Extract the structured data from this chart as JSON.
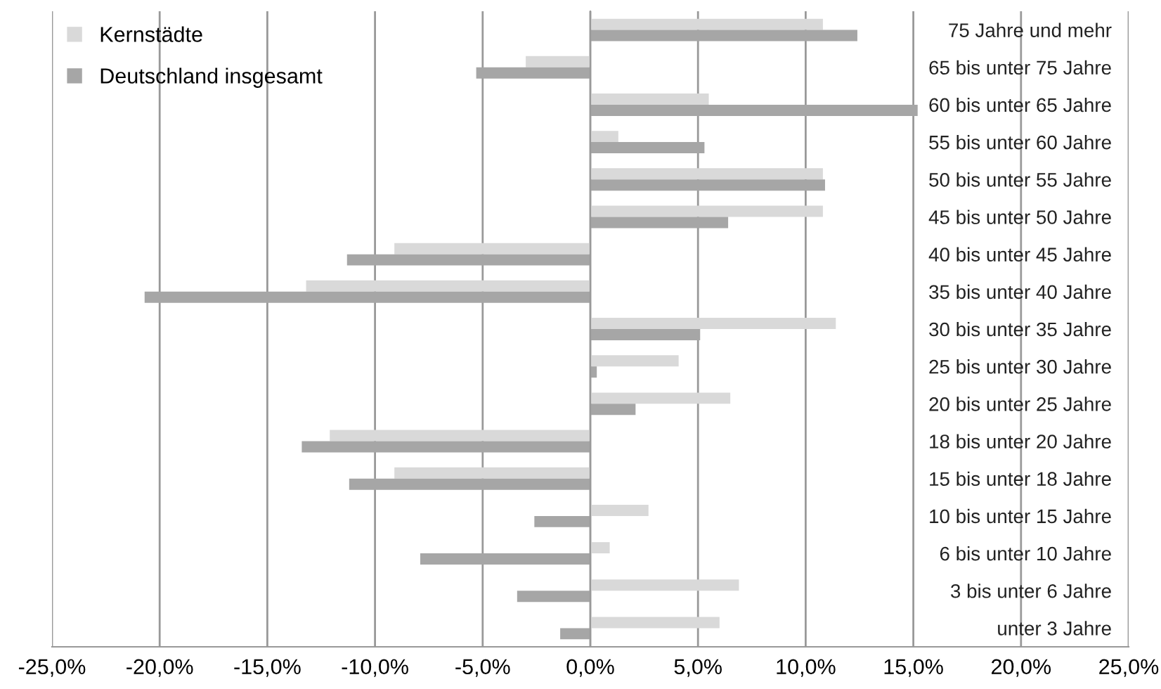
{
  "chart_data": {
    "type": "bar",
    "orientation": "horizontal",
    "categories": [
      "75 Jahre und mehr",
      "65 bis unter 75 Jahre",
      "60 bis unter 65 Jahre",
      "55 bis unter 60 Jahre",
      "50 bis unter 55 Jahre",
      "45 bis unter 50 Jahre",
      "40 bis unter 45 Jahre",
      "35 bis unter 40 Jahre",
      "30 bis unter 35 Jahre",
      "25 bis unter 30 Jahre",
      "20 bis unter 25 Jahre",
      "18 bis unter 20 Jahre",
      "15 bis unter 18 Jahre",
      "10 bis unter 15 Jahre",
      "6 bis unter 10 Jahre",
      "3 bis unter 6 Jahre",
      "unter 3 Jahre"
    ],
    "series": [
      {
        "name": "Kernstädte",
        "color": "#d9d9d9",
        "values": [
          10.8,
          -3.0,
          5.5,
          1.3,
          10.8,
          10.8,
          -9.1,
          -13.2,
          11.4,
          4.1,
          6.5,
          -12.1,
          -9.1,
          2.7,
          0.9,
          6.9,
          6.0
        ]
      },
      {
        "name": "Deutschland insgesamt",
        "color": "#a6a6a6",
        "values": [
          12.4,
          -5.3,
          15.2,
          5.3,
          10.9,
          6.4,
          -11.3,
          -20.7,
          5.1,
          0.3,
          2.1,
          -13.4,
          -11.2,
          -2.6,
          -7.9,
          -3.4,
          -1.4
        ]
      }
    ],
    "xlim": [
      -25,
      25
    ],
    "xticks": [
      {
        "value": -25,
        "label": "-25,0%"
      },
      {
        "value": -20,
        "label": "-20,0%"
      },
      {
        "value": -15,
        "label": "-15,0%"
      },
      {
        "value": -10,
        "label": "-10,0%"
      },
      {
        "value": -5,
        "label": "-5,0%"
      },
      {
        "value": 0,
        "label": "0,0%"
      },
      {
        "value": 5,
        "label": "5,0%"
      },
      {
        "value": 10,
        "label": "10,0%"
      },
      {
        "value": 15,
        "label": "15,0%"
      },
      {
        "value": 20,
        "label": "20,0%"
      },
      {
        "value": 25,
        "label": "25,0%"
      }
    ],
    "grid": "x",
    "legend": "top left"
  }
}
